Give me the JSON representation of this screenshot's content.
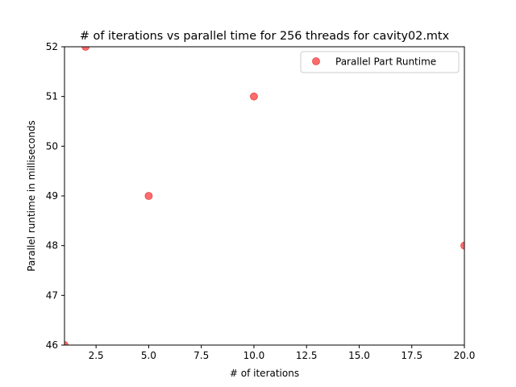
{
  "chart_data": {
    "type": "scatter",
    "title": "# of iterations vs parallel time for 256 threads for cavity02.mtx",
    "xlabel": "# of iterations",
    "ylabel": "Parallel runtime in milliseconds",
    "xlim": [
      1,
      20
    ],
    "ylim": [
      46,
      52
    ],
    "xticks": [
      2.5,
      5.0,
      7.5,
      10.0,
      12.5,
      15.0,
      17.5,
      20.0
    ],
    "xtick_labels": [
      "2.5",
      "5.0",
      "7.5",
      "10.0",
      "12.5",
      "15.0",
      "17.5",
      "20.0"
    ],
    "yticks": [
      46,
      47,
      48,
      49,
      50,
      51,
      52
    ],
    "ytick_labels": [
      "46",
      "47",
      "48",
      "49",
      "50",
      "51",
      "52"
    ],
    "grid": false,
    "legend_position": "top-right",
    "series": [
      {
        "name": "Parallel Part Runtime",
        "color": "#ff6b6b",
        "edge_color": "#e04a4a",
        "x": [
          1,
          2,
          5,
          10,
          20
        ],
        "y": [
          46,
          52,
          49,
          51,
          48
        ]
      }
    ]
  }
}
